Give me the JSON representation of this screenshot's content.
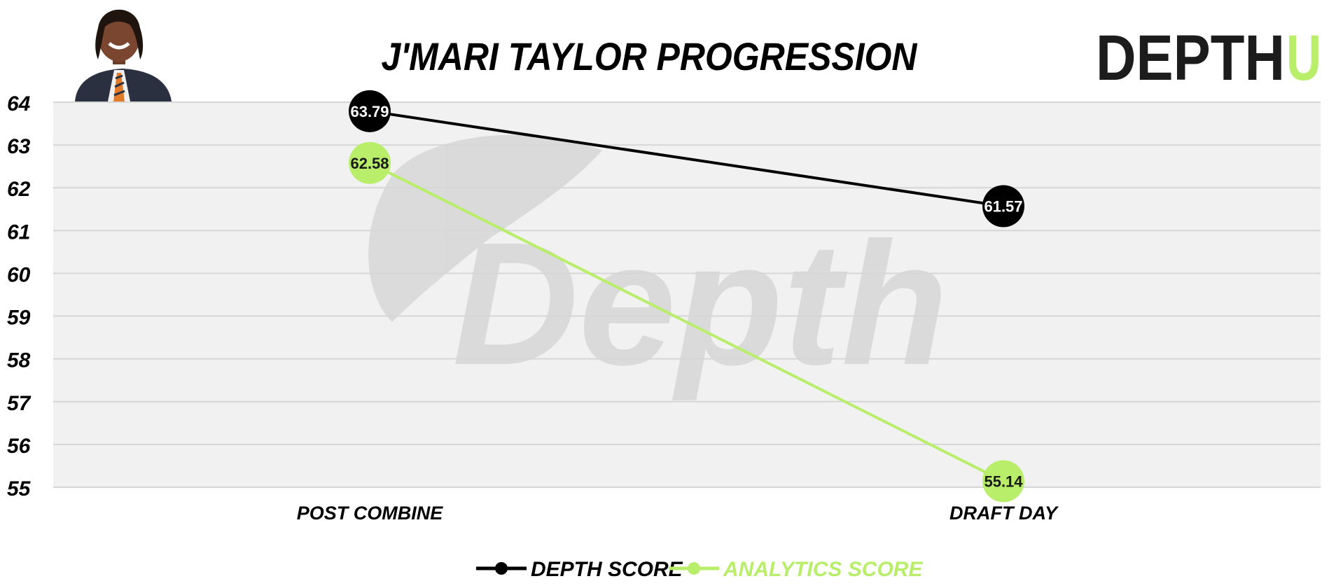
{
  "header": {
    "title": "J'MARI TAYLOR PROGRESSION",
    "logo_text": "DEPTH",
    "logo_accent": "U",
    "watermark": "Depth"
  },
  "colors": {
    "depth": "#000000",
    "analytics": "#b9ee6b",
    "plot_bg": "#f1f1f1",
    "grid": "#d6d6d6",
    "logo_dark": "#1c1c1c",
    "logo_accent": "#b9ee6b"
  },
  "chart_data": {
    "type": "line",
    "title": "J'MARI TAYLOR PROGRESSION",
    "categories": [
      "POST COMBINE",
      "DRAFT DAY"
    ],
    "series": [
      {
        "name": "DEPTH SCORE",
        "values": [
          63.79,
          61.57
        ],
        "labels": [
          "63.79",
          "61.57"
        ],
        "color": "#000000",
        "label_color": "#ffffff"
      },
      {
        "name": "ANALYTICS SCORE",
        "values": [
          62.58,
          55.14
        ],
        "labels": [
          "62.58",
          "55.14"
        ],
        "color": "#b9ee6b",
        "label_color": "#1a1a1a"
      }
    ],
    "ylim": [
      55,
      64
    ],
    "yticks": [
      "55",
      "56",
      "57",
      "58",
      "59",
      "60",
      "61",
      "62",
      "63",
      "64"
    ],
    "grid": true,
    "legend_position": "bottom-center"
  }
}
